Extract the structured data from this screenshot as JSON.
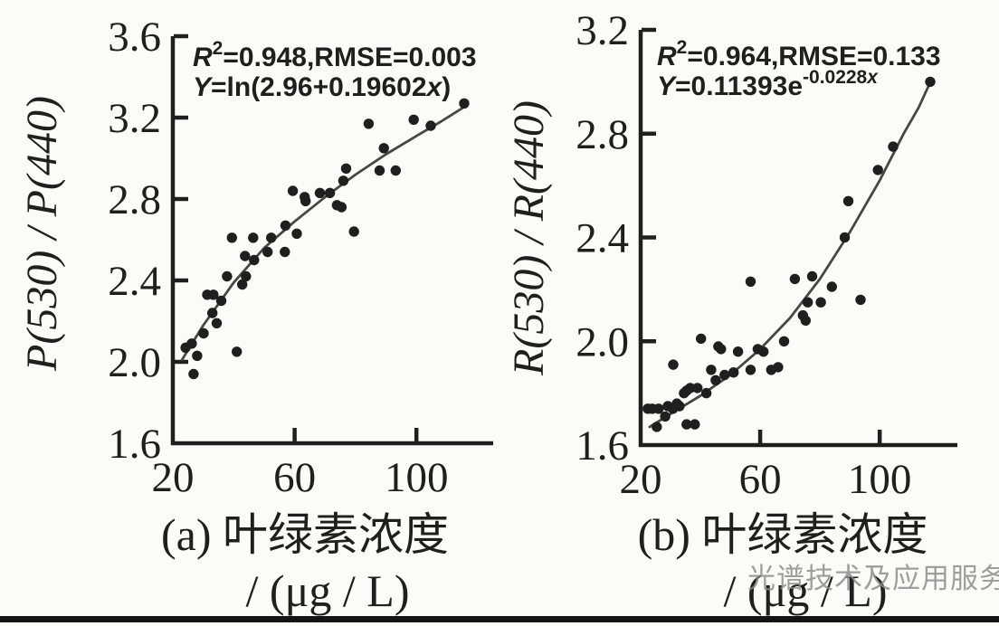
{
  "figure": {
    "description": "Two scatter plots of band-ratio vs chlorophyll concentration with fitted curves",
    "bg": "#fbfbfa",
    "ink": "#1f1f1f",
    "curve_color": "#474747",
    "bar_color": "#141414"
  },
  "watermark": {
    "text": "光谱技术及应用服务",
    "color": "#8a8a8a"
  },
  "chart_data": [
    {
      "panel": "a",
      "type": "scatter",
      "ylabel": "P(530) / P(440)",
      "xlabel": "叶绿素浓度 / (μg / L)",
      "caption": [
        "(a) 叶绿素浓度",
        "/ (μg / L)"
      ],
      "r2": 0.948,
      "rmse": 0.003,
      "equation": "Y=ln(2.96+0.19602x)",
      "annotation": [
        [
          {
            "t": "R",
            "i": 1
          },
          {
            "t": "2",
            "sup": 1
          },
          {
            "t": "=0.948,RMSE=0.003"
          }
        ],
        [
          {
            "t": "Y",
            "i": 1
          },
          {
            "t": "=ln(2.96+0.19602"
          },
          {
            "t": "x",
            "i": 1
          },
          {
            "t": ")"
          }
        ]
      ],
      "xlim": [
        20,
        125.2
      ],
      "ylim": [
        1.6,
        3.6
      ],
      "xticks": [
        20,
        60,
        100
      ],
      "yticks": [
        1.6,
        2.0,
        2.4,
        2.8,
        3.2,
        3.6
      ],
      "grid": false,
      "points": [
        [
          26.8,
          1.94
        ],
        [
          26.2,
          2.09
        ],
        [
          24.2,
          2.07
        ],
        [
          28.0,
          2.03
        ],
        [
          30.1,
          2.14
        ],
        [
          34.4,
          2.19
        ],
        [
          33.0,
          2.24
        ],
        [
          31.3,
          2.33
        ],
        [
          33.3,
          2.33
        ],
        [
          35.9,
          2.3
        ],
        [
          41.0,
          2.05
        ],
        [
          37.8,
          2.42
        ],
        [
          42.8,
          2.38
        ],
        [
          39.4,
          2.61
        ],
        [
          44.0,
          2.42
        ],
        [
          43.7,
          2.52
        ],
        [
          46.4,
          2.61
        ],
        [
          46.7,
          2.5
        ],
        [
          52.3,
          2.61
        ],
        [
          51.1,
          2.54
        ],
        [
          56.8,
          2.54
        ],
        [
          57.0,
          2.67
        ],
        [
          60.7,
          2.63
        ],
        [
          59.4,
          2.84
        ],
        [
          63.6,
          2.79
        ],
        [
          63.3,
          2.81
        ],
        [
          68.3,
          2.83
        ],
        [
          71.6,
          2.83
        ],
        [
          73.9,
          2.77
        ],
        [
          75.4,
          2.76
        ],
        [
          76.0,
          2.89
        ],
        [
          76.9,
          2.95
        ],
        [
          79.5,
          2.64
        ],
        [
          84.3,
          3.17
        ],
        [
          87.9,
          2.94
        ],
        [
          89.3,
          3.05
        ],
        [
          93.2,
          2.94
        ],
        [
          99.1,
          3.19
        ],
        [
          104.7,
          3.16
        ],
        [
          115.7,
          3.27
        ]
      ],
      "curve": [
        [
          23,
          2.01
        ],
        [
          30,
          2.18
        ],
        [
          40,
          2.39
        ],
        [
          50,
          2.56
        ],
        [
          60,
          2.69
        ],
        [
          70,
          2.81
        ],
        [
          80,
          2.92
        ],
        [
          90,
          3.02
        ],
        [
          100,
          3.11
        ],
        [
          108,
          3.18
        ],
        [
          116.5,
          3.26
        ]
      ]
    },
    {
      "panel": "b",
      "type": "scatter",
      "ylabel": "R(530) / R(440)",
      "xlabel": "叶绿素浓度 / (μg / L)",
      "caption": [
        "(b) 叶绿素浓度",
        "/ (μg / L)"
      ],
      "r2": 0.964,
      "rmse": 0.133,
      "equation": "Y=0.11393e^(-0.0228x)",
      "annotation": [
        [
          {
            "t": "R",
            "i": 1
          },
          {
            "t": "2",
            "sup": 1
          },
          {
            "t": "=0.964,RMSE=0.133"
          }
        ],
        [
          {
            "t": "Y",
            "i": 1
          },
          {
            "t": "=0.11393e"
          },
          {
            "t": "-0.0228",
            "sup": 1
          },
          {
            "t": "x",
            "sup": 1,
            "i": 1
          }
        ]
      ],
      "xlim": [
        20,
        126
      ],
      "ylim": [
        1.6,
        3.2
      ],
      "xticks": [
        20,
        60,
        100
      ],
      "yticks": [
        1.6,
        2.0,
        2.4,
        2.8,
        3.2
      ],
      "grid": false,
      "points": [
        [
          22.4,
          1.74
        ],
        [
          23.9,
          1.74
        ],
        [
          25.4,
          1.67
        ],
        [
          26.0,
          1.74
        ],
        [
          28.2,
          1.71
        ],
        [
          29.1,
          1.75
        ],
        [
          30.8,
          1.74
        ],
        [
          30.9,
          1.91
        ],
        [
          32.1,
          1.76
        ],
        [
          33.0,
          1.75
        ],
        [
          34.5,
          1.8
        ],
        [
          35.4,
          1.81
        ],
        [
          35.4,
          1.68
        ],
        [
          38.1,
          1.68
        ],
        [
          36.6,
          1.82
        ],
        [
          39.0,
          1.82
        ],
        [
          40.2,
          2.01
        ],
        [
          42.0,
          1.8
        ],
        [
          43.6,
          1.89
        ],
        [
          45.1,
          1.85
        ],
        [
          46.0,
          1.98
        ],
        [
          46.9,
          1.97
        ],
        [
          48.1,
          1.87
        ],
        [
          51.1,
          1.88
        ],
        [
          52.6,
          1.96
        ],
        [
          56.8,
          1.89
        ],
        [
          56.8,
          2.23
        ],
        [
          59.2,
          1.97
        ],
        [
          61.1,
          1.96
        ],
        [
          63.7,
          1.89
        ],
        [
          66.0,
          1.9
        ],
        [
          68.0,
          2.0
        ],
        [
          71.6,
          2.24
        ],
        [
          74.3,
          2.1
        ],
        [
          75.2,
          2.08
        ],
        [
          75.9,
          2.15
        ],
        [
          77.4,
          2.25
        ],
        [
          80.3,
          2.15
        ],
        [
          84.0,
          2.21
        ],
        [
          88.3,
          2.4
        ],
        [
          89.5,
          2.54
        ],
        [
          93.6,
          2.16
        ],
        [
          99.4,
          2.66
        ],
        [
          104.5,
          2.75
        ],
        [
          116.9,
          3.0
        ]
      ],
      "curve": [
        [
          23,
          1.67
        ],
        [
          30,
          1.72
        ],
        [
          40,
          1.79
        ],
        [
          50,
          1.87
        ],
        [
          60,
          1.97
        ],
        [
          70,
          2.09
        ],
        [
          80,
          2.24
        ],
        [
          90,
          2.42
        ],
        [
          100,
          2.62
        ],
        [
          108,
          2.8
        ],
        [
          113,
          2.9
        ],
        [
          117,
          3.0
        ]
      ]
    }
  ]
}
